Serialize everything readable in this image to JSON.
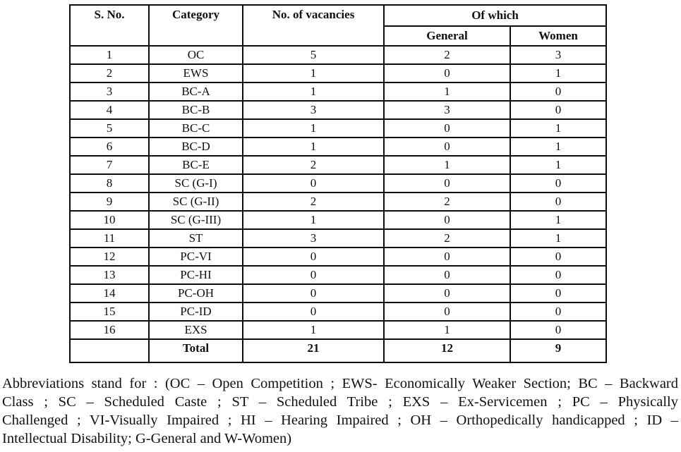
{
  "table": {
    "headers": {
      "s_no": "S. No.",
      "category": "Category",
      "vacancies": "No. of vacancies",
      "of_which": "Of which",
      "general": "General",
      "women": "Women"
    },
    "rows": [
      {
        "s_no": "1",
        "category": "OC",
        "vacancies": "5",
        "general": "2",
        "women": "3"
      },
      {
        "s_no": "2",
        "category": "EWS",
        "vacancies": "1",
        "general": "0",
        "women": "1"
      },
      {
        "s_no": "3",
        "category": "BC-A",
        "vacancies": "1",
        "general": "1",
        "women": "0"
      },
      {
        "s_no": "4",
        "category": "BC-B",
        "vacancies": "3",
        "general": "3",
        "women": "0"
      },
      {
        "s_no": "5",
        "category": "BC-C",
        "vacancies": "1",
        "general": "0",
        "women": "1"
      },
      {
        "s_no": "6",
        "category": "BC-D",
        "vacancies": "1",
        "general": "0",
        "women": "1"
      },
      {
        "s_no": "7",
        "category": "BC-E",
        "vacancies": "2",
        "general": "1",
        "women": "1"
      },
      {
        "s_no": "8",
        "category": "SC (G-I)",
        "vacancies": "0",
        "general": "0",
        "women": "0"
      },
      {
        "s_no": "9",
        "category": "SC (G-II)",
        "vacancies": "2",
        "general": "2",
        "women": "0"
      },
      {
        "s_no": "10",
        "category": "SC (G-III)",
        "vacancies": "1",
        "general": "0",
        "women": "1"
      },
      {
        "s_no": "11",
        "category": "ST",
        "vacancies": "3",
        "general": "2",
        "women": "1"
      },
      {
        "s_no": "12",
        "category": "PC-VI",
        "vacancies": "0",
        "general": "0",
        "women": "0"
      },
      {
        "s_no": "13",
        "category": "PC-HI",
        "vacancies": "0",
        "general": "0",
        "women": "0"
      },
      {
        "s_no": "14",
        "category": "PC-OH",
        "vacancies": "0",
        "general": "0",
        "women": "0"
      },
      {
        "s_no": "15",
        "category": "PC-ID",
        "vacancies": "0",
        "general": "0",
        "women": "0"
      },
      {
        "s_no": "16",
        "category": "EXS",
        "vacancies": "1",
        "general": "1",
        "women": "0"
      }
    ],
    "total": {
      "s_no": "",
      "label": "Total",
      "vacancies": "21",
      "general": "12",
      "women": "9"
    }
  },
  "footnote": {
    "lines": [
      "Abbreviations stand for : (OC – Open Competition ; EWS- Economically Weaker Section; BC – Backward",
      "Class ; SC – Scheduled Caste ; ST – Scheduled Tribe ; EXS – Ex-Servicemen ; PC – Physically",
      "Challenged ; VI-Visually Impaired ; HI – Hearing Impaired ; OH – Orthopedically handicapped ; ID –",
      "Intellectual Disability; G-General and W-Women)"
    ]
  }
}
